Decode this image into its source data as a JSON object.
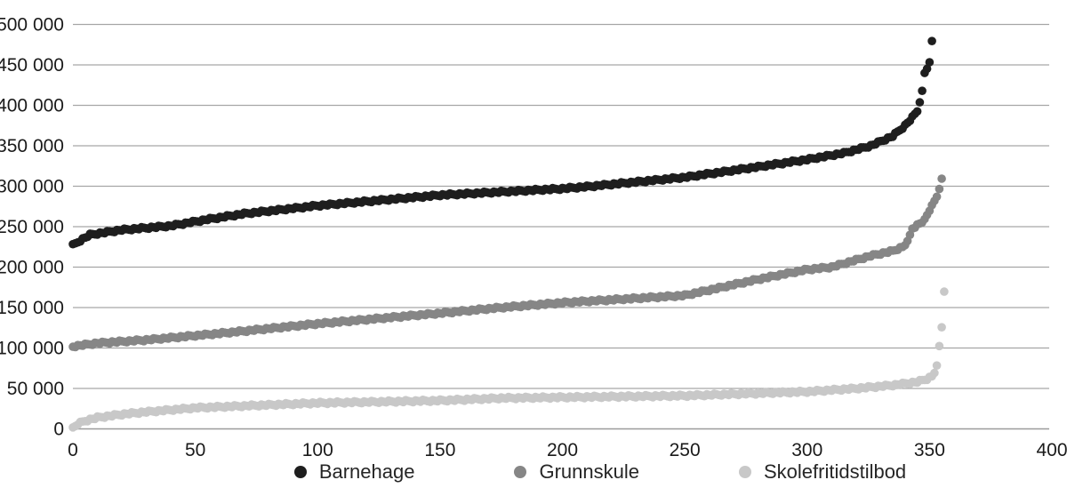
{
  "chart_data": {
    "type": "scatter",
    "title": "",
    "xlabel": "",
    "ylabel": "",
    "xlim": [
      0,
      400
    ],
    "ylim": [
      0,
      500000
    ],
    "x_ticks": [
      0,
      50,
      100,
      150,
      200,
      250,
      300,
      350,
      400
    ],
    "y_ticks": [
      0,
      50000,
      100000,
      150000,
      200000,
      250000,
      300000,
      350000,
      400000,
      450000,
      500000
    ],
    "y_tick_labels": [
      "0",
      "50 000",
      "100 000",
      "150 000",
      "200 000",
      "250 000",
      "300 000",
      "350 000",
      "400 000",
      "450 000",
      "500 000"
    ],
    "grid": true,
    "legend_position": "bottom",
    "colors": {
      "grid": "#a6a6a6",
      "axis": "#9b9b9b",
      "tick_text": "#1a1a1a"
    },
    "series": [
      {
        "name": "Barnehage",
        "color": "#1e1e1e",
        "n_points": 352,
        "anchors": [
          [
            0,
            227000
          ],
          [
            3,
            233000
          ],
          [
            7,
            240000
          ],
          [
            20,
            246000
          ],
          [
            40,
            251000
          ],
          [
            55,
            259000
          ],
          [
            70,
            266000
          ],
          [
            100,
            276000
          ],
          [
            150,
            289000
          ],
          [
            200,
            297000
          ],
          [
            212,
            300000
          ],
          [
            250,
            311000
          ],
          [
            280,
            324000
          ],
          [
            300,
            333000
          ],
          [
            315,
            341000
          ],
          [
            326,
            350000
          ],
          [
            335,
            362000
          ],
          [
            340,
            375000
          ],
          [
            343,
            385000
          ],
          [
            345,
            393000
          ],
          [
            347,
            417000
          ],
          [
            348,
            440000
          ],
          [
            350,
            452000
          ],
          [
            351,
            479000
          ]
        ]
      },
      {
        "name": "Grunnskule",
        "color": "#868686",
        "n_points": 356,
        "anchors": [
          [
            0,
            102000
          ],
          [
            10,
            106000
          ],
          [
            30,
            110000
          ],
          [
            60,
            118000
          ],
          [
            100,
            130000
          ],
          [
            150,
            143000
          ],
          [
            175,
            150000
          ],
          [
            200,
            156000
          ],
          [
            250,
            165000
          ],
          [
            280,
            185000
          ],
          [
            300,
            197000
          ],
          [
            310,
            200000
          ],
          [
            326,
            214000
          ],
          [
            335,
            220000
          ],
          [
            339,
            225000
          ],
          [
            341,
            231000
          ],
          [
            343,
            248000
          ],
          [
            346,
            254000
          ],
          [
            348,
            258000
          ],
          [
            350,
            270000
          ],
          [
            351,
            278000
          ],
          [
            352,
            281000
          ],
          [
            353,
            287000
          ],
          [
            355,
            308000
          ]
        ]
      },
      {
        "name": "Skolefritidstilbod",
        "color": "#c8c8c8",
        "n_points": 357,
        "anchors": [
          [
            0,
            1000
          ],
          [
            2,
            6000
          ],
          [
            5,
            10000
          ],
          [
            10,
            14000
          ],
          [
            20,
            18000
          ],
          [
            30,
            21000
          ],
          [
            50,
            26000
          ],
          [
            100,
            32000
          ],
          [
            150,
            35000
          ],
          [
            175,
            38000
          ],
          [
            200,
            39000
          ],
          [
            250,
            41000
          ],
          [
            280,
            44000
          ],
          [
            300,
            46000
          ],
          [
            320,
            50000
          ],
          [
            335,
            54000
          ],
          [
            345,
            58000
          ],
          [
            349,
            62000
          ],
          [
            351,
            65000
          ],
          [
            352,
            70000
          ],
          [
            353,
            77000
          ],
          [
            354,
            102000
          ],
          [
            355,
            126000
          ],
          [
            356,
            171000
          ]
        ]
      }
    ]
  }
}
